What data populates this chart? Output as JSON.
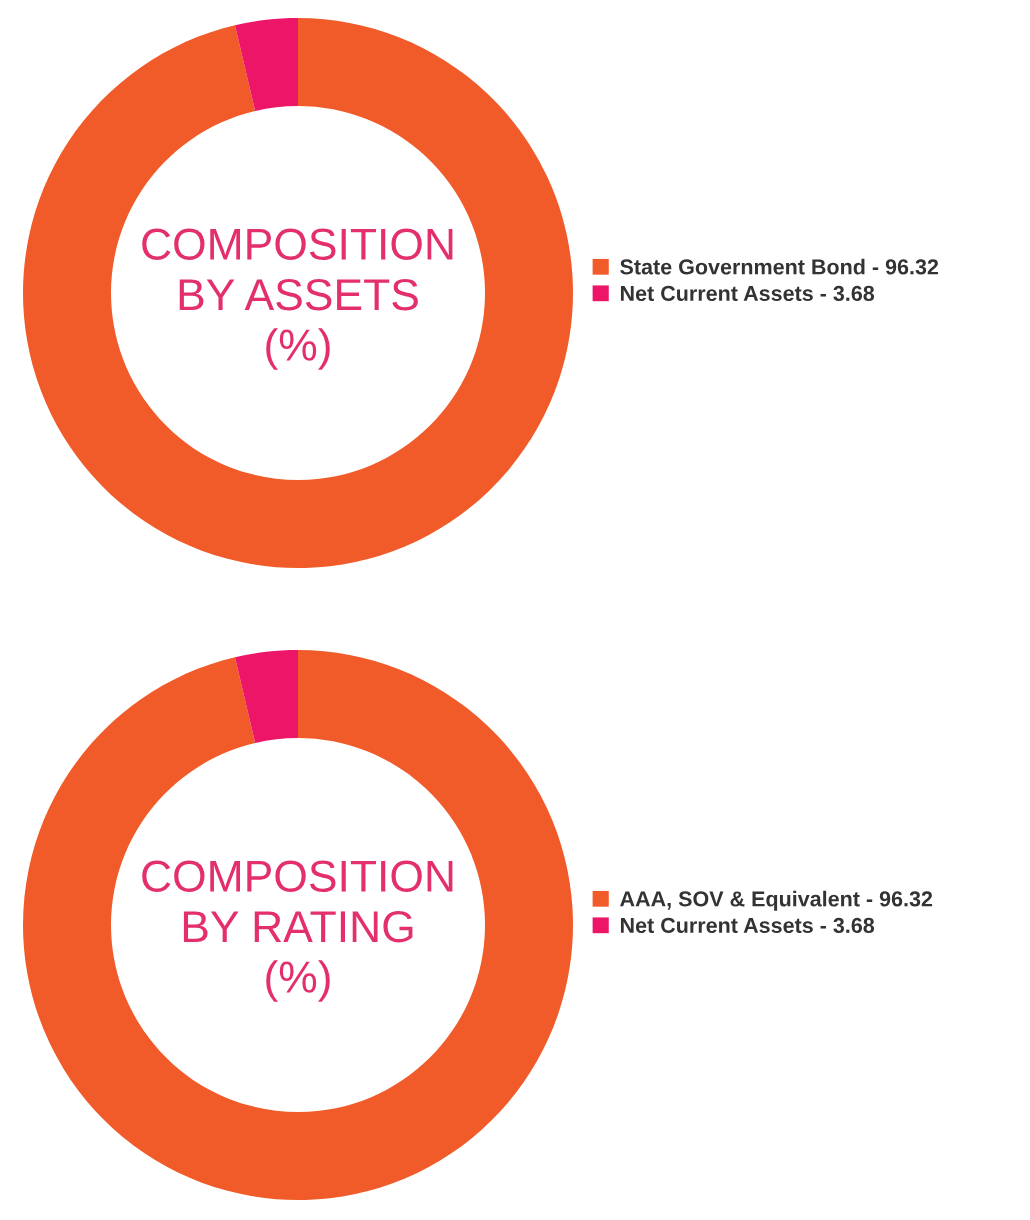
{
  "chart_data": [
    {
      "type": "donut",
      "title": "COMPOSITION\nBY ASSETS\n(%)",
      "categories": [
        "State Government Bond - 96.32",
        "Net Current Assets - 3.68"
      ],
      "values": [
        96.32,
        3.68
      ],
      "colors": [
        "#f15a29",
        "#ec1567"
      ],
      "legend": "right"
    },
    {
      "type": "donut",
      "title": "COMPOSITION\nBY RATING\n(%)",
      "categories": [
        "AAA, SOV & Equivalent - 96.32",
        "Net Current Assets - 3.68"
      ],
      "values": [
        96.32,
        3.68
      ],
      "colors": [
        "#f15a29",
        "#ec1567"
      ],
      "legend": "right"
    }
  ]
}
